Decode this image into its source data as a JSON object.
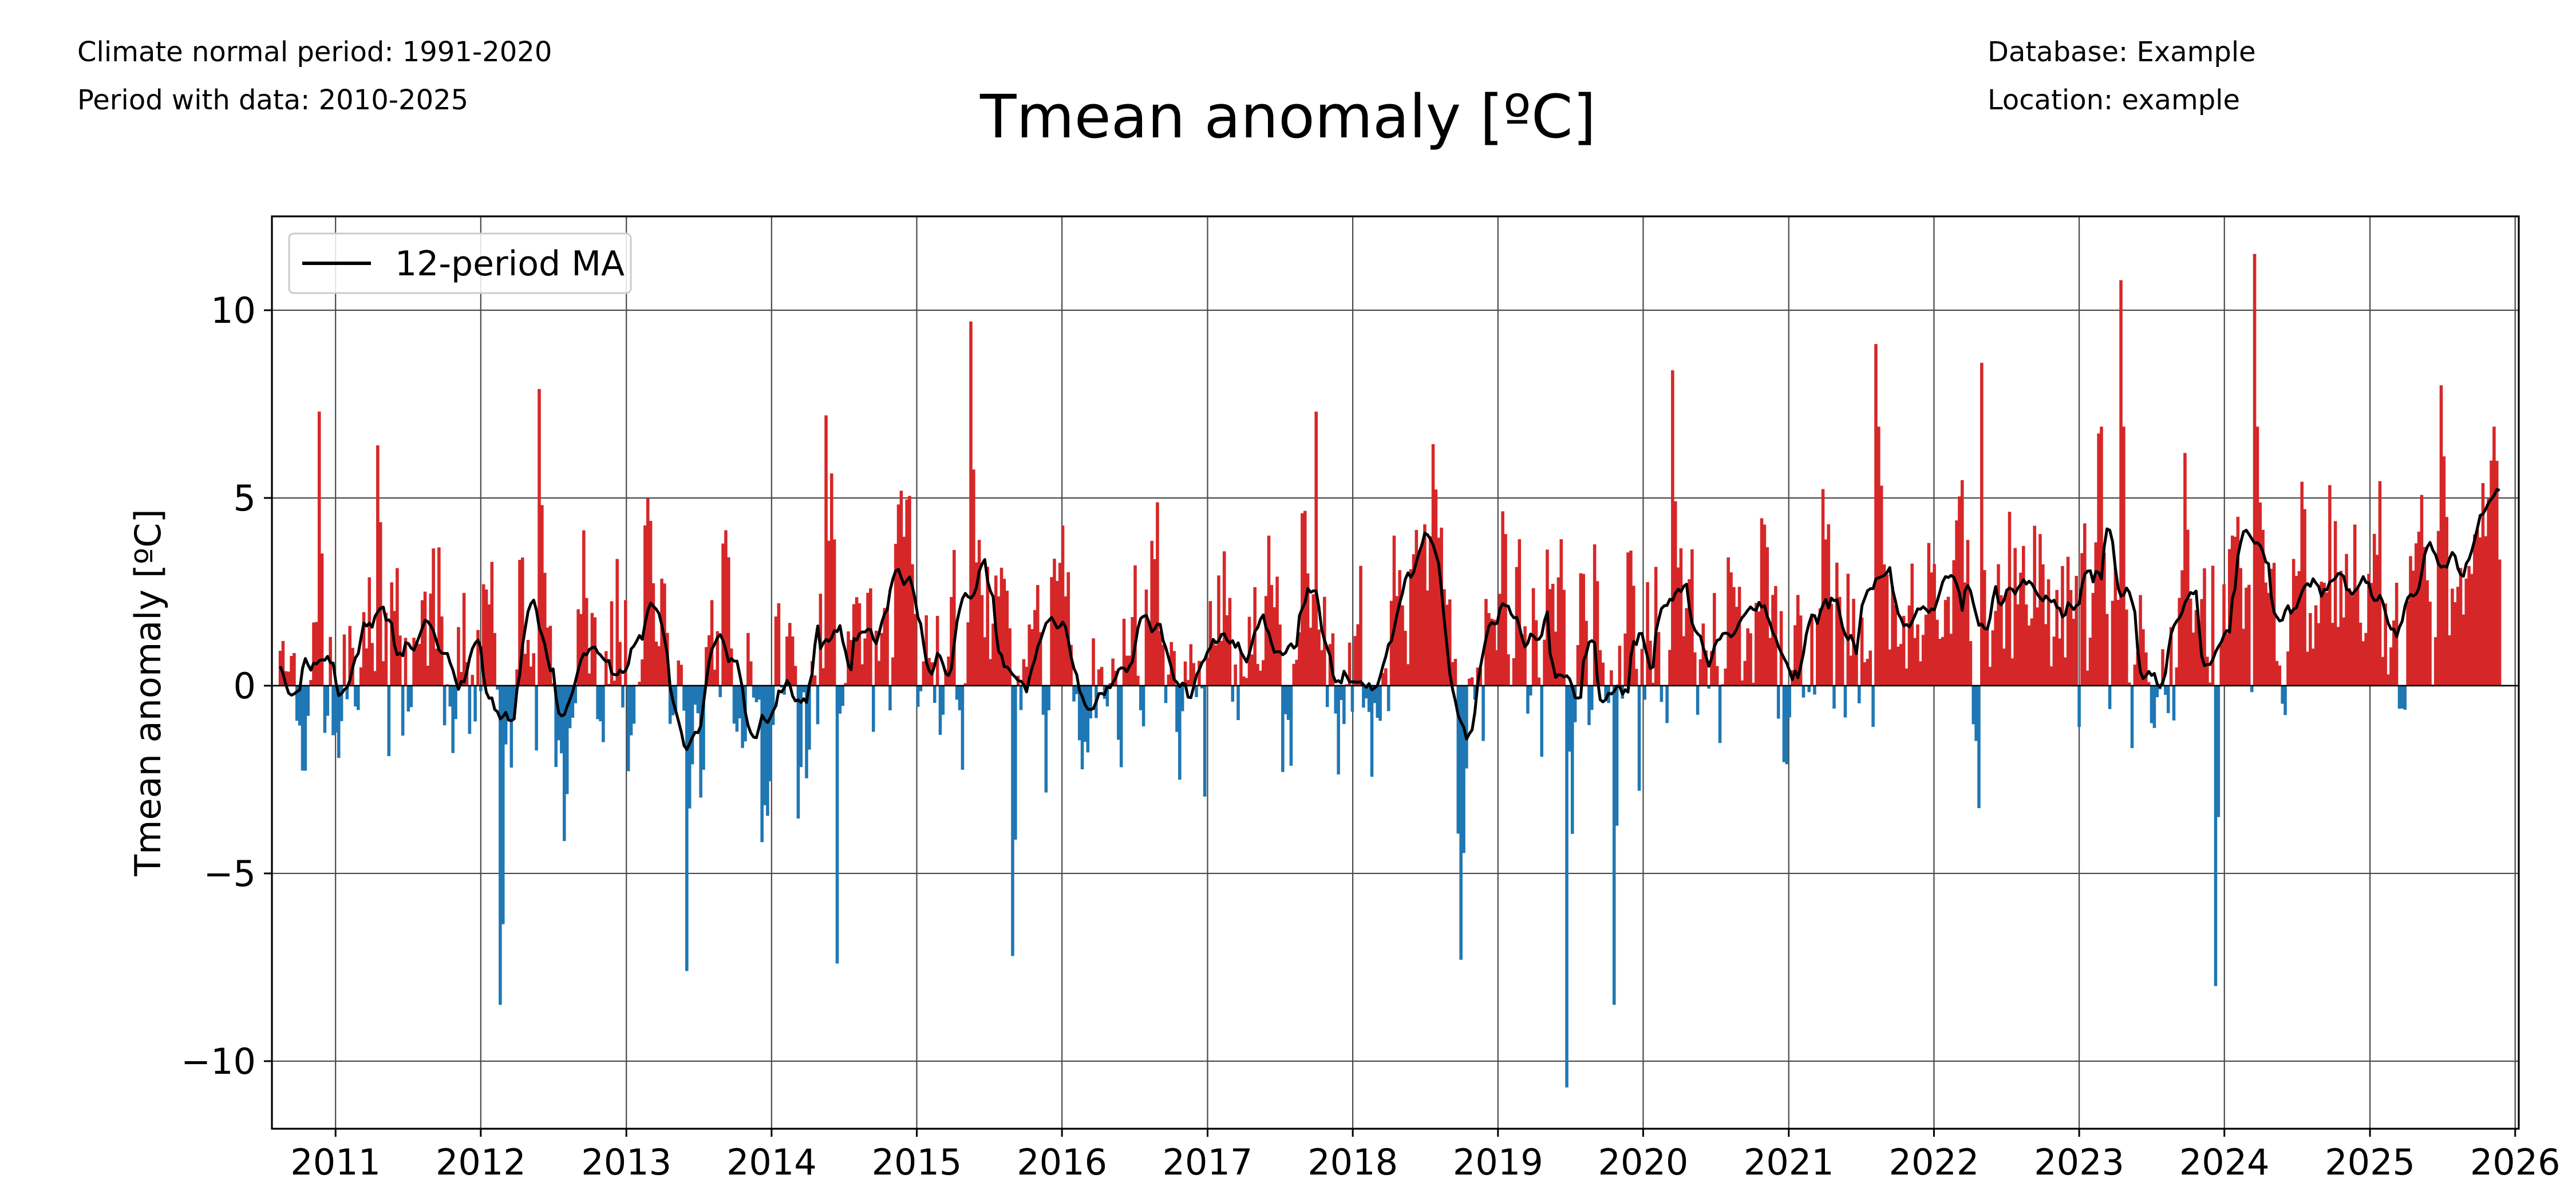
{
  "header": {
    "climate_normal": "Climate normal period: 1991-2020",
    "period_with_data": "Period with data: 2010-2025",
    "database": "Database: Example",
    "location": "Location: example"
  },
  "chart_data": {
    "type": "bar",
    "title": "Tmean anomaly [ºC]",
    "ylabel": "Tmean anomaly [ºC]",
    "xlabel": "",
    "x_range": [
      "2010-07-25",
      "2026-01-10"
    ],
    "data_start": "2010-08-15",
    "data_end": "2025-11-25",
    "ylim": [
      -11.8,
      12.5
    ],
    "yticks": [
      -10,
      -5,
      0,
      5,
      10
    ],
    "ytick_labels": [
      "−10",
      "−5",
      "0",
      "5",
      "10"
    ],
    "xticks": [
      "2011-01-01",
      "2012-01-01",
      "2013-01-01",
      "2014-01-01",
      "2015-01-01",
      "2016-01-01",
      "2017-01-01",
      "2018-01-01",
      "2019-01-01",
      "2020-01-01",
      "2021-01-01",
      "2022-01-01",
      "2023-01-01",
      "2024-01-01",
      "2025-01-01",
      "2026-01-01"
    ],
    "xtick_labels": [
      "2011",
      "2012",
      "2013",
      "2014",
      "2015",
      "2016",
      "2017",
      "2018",
      "2019",
      "2020",
      "2021",
      "2022",
      "2023",
      "2024",
      "2025",
      "2026"
    ],
    "grid": true,
    "legend_position": "top-left",
    "series": [
      {
        "name": "12-period MA",
        "type": "line",
        "color": "#000000"
      }
    ],
    "colors": {
      "positive": "#d62728",
      "negative": "#1f77b4",
      "ma_line": "#000000"
    },
    "peaks": [
      {
        "date": "2010-11-20",
        "value": 7.3
      },
      {
        "date": "2011-04-15",
        "value": 6.4
      },
      {
        "date": "2012-02-20",
        "value": -8.5
      },
      {
        "date": "2012-05-25",
        "value": 7.9
      },
      {
        "date": "2013-06-01",
        "value": -7.6
      },
      {
        "date": "2014-05-15",
        "value": 7.2
      },
      {
        "date": "2014-06-15",
        "value": -7.4
      },
      {
        "date": "2015-05-15",
        "value": 9.7
      },
      {
        "date": "2015-09-01",
        "value": -7.2
      },
      {
        "date": "2017-10-01",
        "value": 7.3
      },
      {
        "date": "2018-10-01",
        "value": -7.3
      },
      {
        "date": "2019-06-20",
        "value": -10.7
      },
      {
        "date": "2019-10-20",
        "value": -8.5
      },
      {
        "date": "2020-03-15",
        "value": 8.4
      },
      {
        "date": "2021-08-05",
        "value": 9.1
      },
      {
        "date": "2022-05-01",
        "value": 8.6
      },
      {
        "date": "2023-04-15",
        "value": 10.8
      },
      {
        "date": "2023-12-10",
        "value": -8.0
      },
      {
        "date": "2024-03-15",
        "value": 11.5
      },
      {
        "date": "2025-07-01",
        "value": 8.0
      }
    ]
  }
}
